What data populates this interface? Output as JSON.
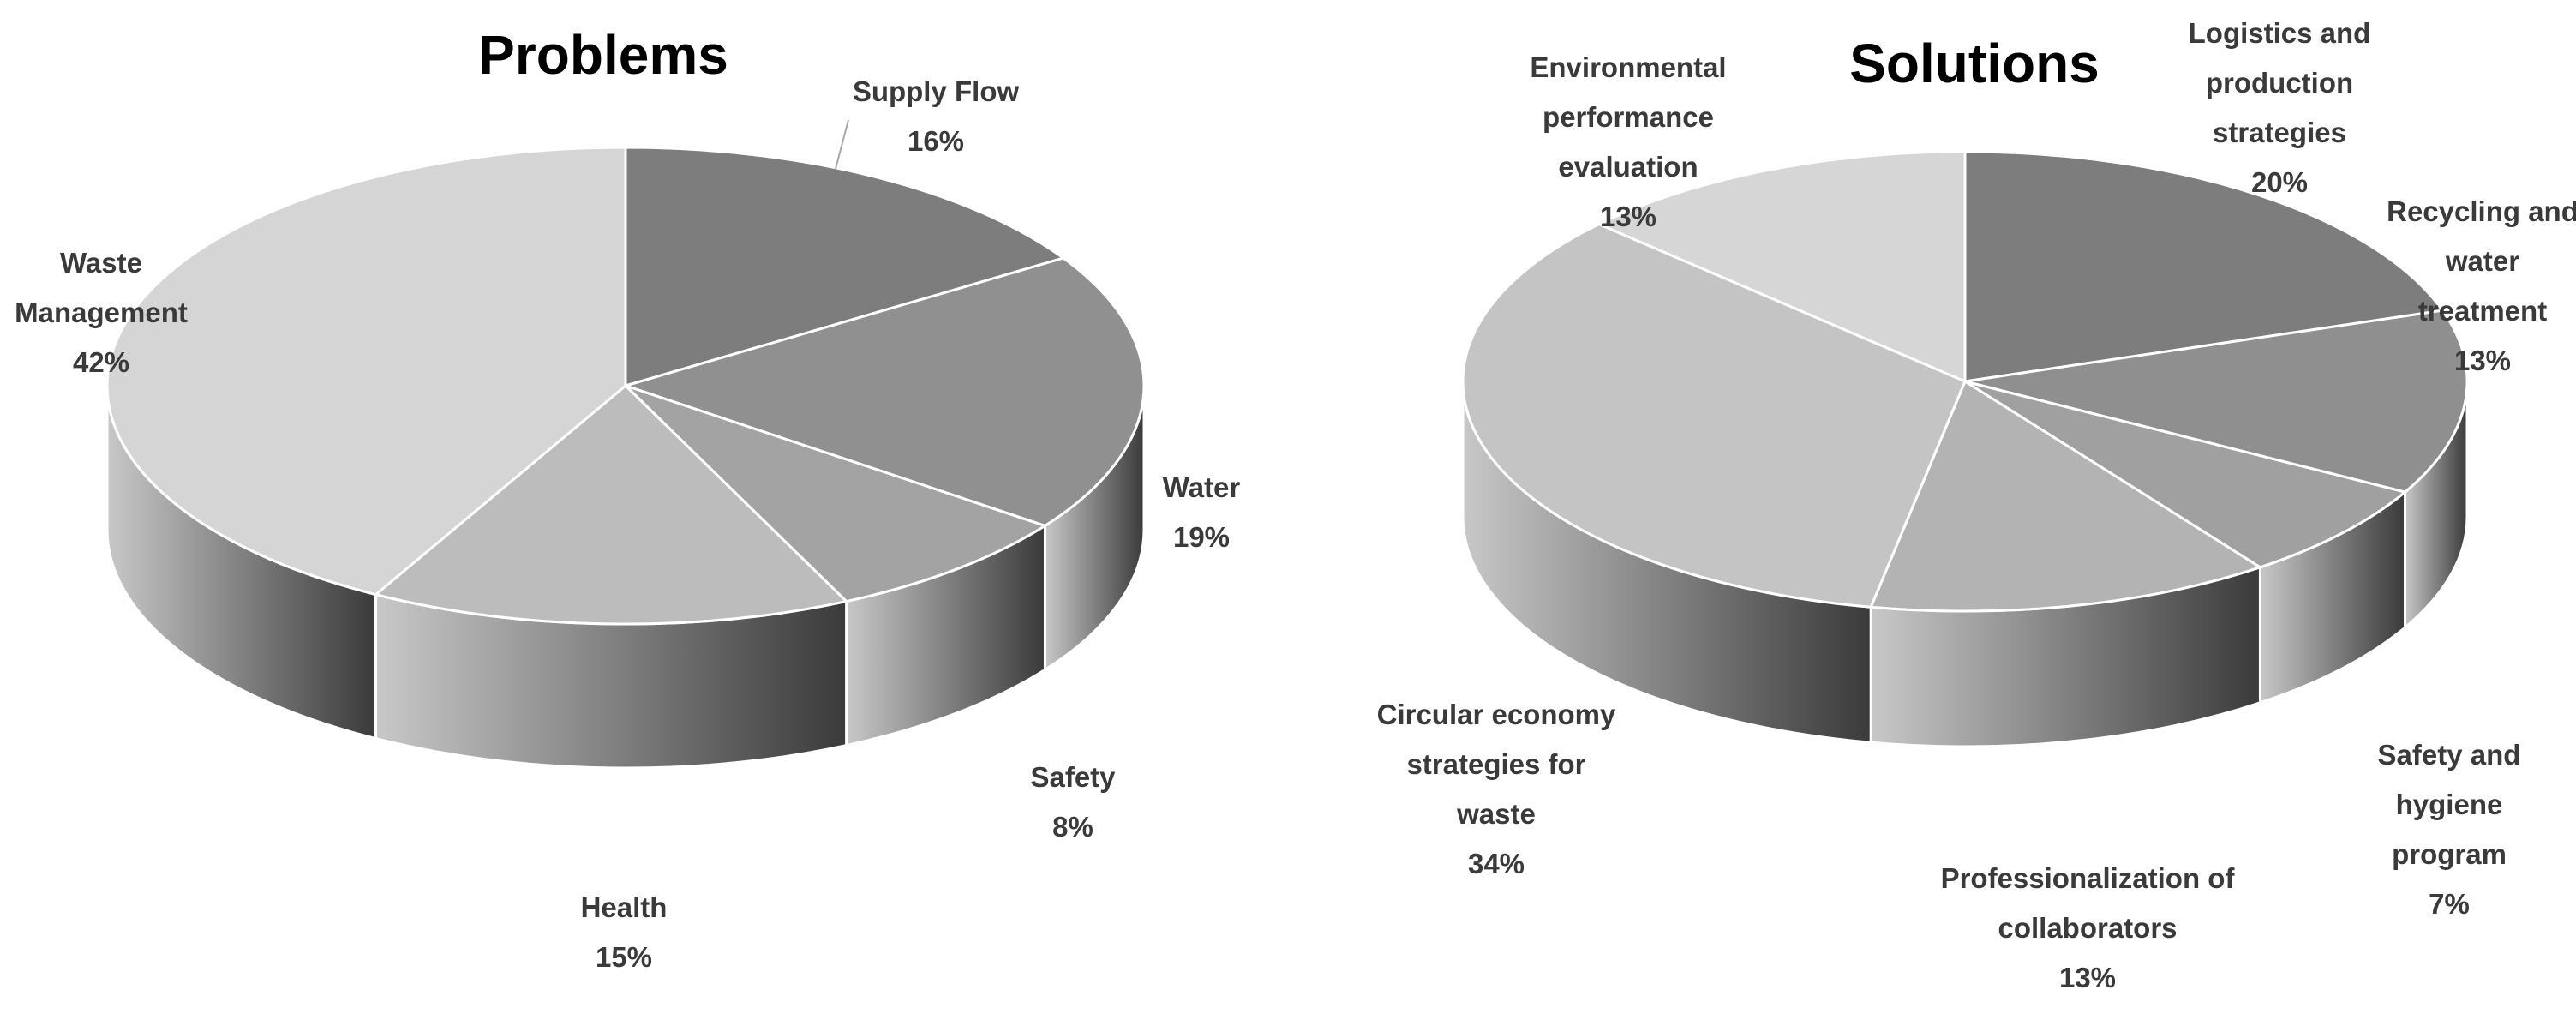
{
  "chart_data": [
    {
      "type": "pie",
      "title": "Problems",
      "slices": [
        {
          "label": [
            "Supply Flow"
          ],
          "value": 16,
          "pct_label": "16%",
          "color": "#7d7d7d"
        },
        {
          "label": [
            "Water"
          ],
          "value": 19,
          "pct_label": "19%",
          "color": "#909090"
        },
        {
          "label": [
            "Safety"
          ],
          "value": 8,
          "pct_label": "8%",
          "color": "#a3a3a3"
        },
        {
          "label": [
            "Health"
          ],
          "value": 15,
          "pct_label": "15%",
          "color": "#bcbcbc"
        },
        {
          "label": [
            "Waste",
            "Management"
          ],
          "value": 42,
          "pct_label": "42%",
          "color": "#d5d5d5"
        }
      ]
    },
    {
      "type": "pie",
      "title": "Solutions",
      "slices": [
        {
          "label": [
            "Logistics and",
            "production",
            "strategies"
          ],
          "value": 20,
          "pct_label": "20%",
          "color": "#7d7d7d"
        },
        {
          "label": [
            "Recycling and",
            "water",
            "treatment"
          ],
          "value": 13,
          "pct_label": "13%",
          "color": "#8f8f8f"
        },
        {
          "label": [
            "Safety and",
            "hygiene",
            "program"
          ],
          "value": 7,
          "pct_label": "7%",
          "color": "#a0a0a0"
        },
        {
          "label": [
            "Professionalization  of",
            "collaborators"
          ],
          "value": 13,
          "pct_label": "13%",
          "color": "#b3b3b3"
        },
        {
          "label": [
            "Circular economy",
            "strategies for",
            "waste"
          ],
          "value": 34,
          "pct_label": "34%",
          "color": "#c4c4c4"
        },
        {
          "label": [
            "Environmental",
            "performance",
            "evaluation"
          ],
          "value": 13,
          "pct_label": "13%",
          "color": "#d6d6d6"
        }
      ]
    }
  ]
}
